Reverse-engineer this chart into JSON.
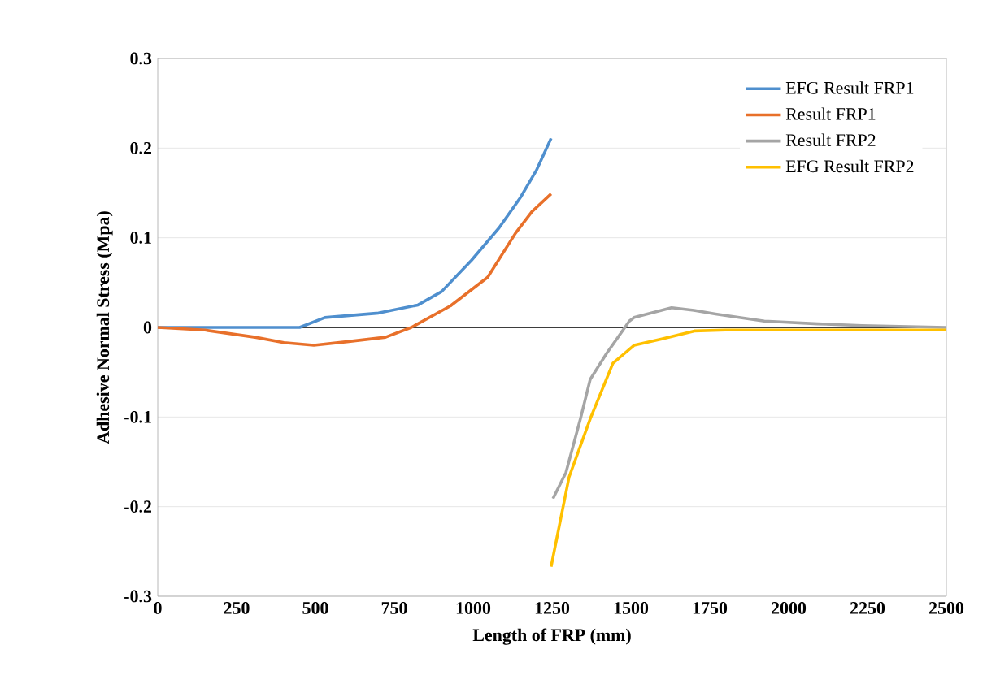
{
  "chart_data": {
    "type": "line",
    "xlabel": "Length of FRP (mm)",
    "ylabel": "Adhesive Normal Stress (Mpa)",
    "xlim": [
      0,
      2500
    ],
    "xticks": [
      0,
      250,
      500,
      750,
      1000,
      1250,
      1500,
      1750,
      2000,
      2250,
      2500
    ],
    "ylim": [
      -0.3,
      0.3
    ],
    "yticks": [
      -0.3,
      -0.2,
      -0.1,
      0,
      0.1,
      0.2,
      0.3
    ],
    "grid": "y",
    "legend": "top right",
    "marker": "none",
    "line_style": "solid",
    "ref_lines": [
      {
        "axis": "y",
        "value": 0,
        "color": "#000000"
      }
    ],
    "series": [
      {
        "name": "EFG Result FRP1",
        "color": "#4f8fce",
        "x": [
          0,
          200,
          450,
          530,
          700,
          825,
          900,
          995,
          1082,
          1150,
          1200,
          1247
        ],
        "values": [
          0,
          0,
          0,
          0.011,
          0.016,
          0.025,
          0.04,
          0.075,
          0.111,
          0.145,
          0.175,
          0.211
        ]
      },
      {
        "name": "Result FRP1",
        "color": "#e8702a",
        "x": [
          0,
          150,
          309,
          400,
          495,
          600,
          722,
          804,
          928,
          1046,
          1134,
          1186,
          1247
        ],
        "values": [
          0,
          -0.003,
          -0.011,
          -0.017,
          -0.02,
          -0.016,
          -0.011,
          0,
          0.024,
          0.056,
          0.105,
          0.129,
          0.149
        ]
      },
      {
        "name": "Result FRP2",
        "color": "#a5a5a5",
        "x": [
          1253,
          1294,
          1340,
          1371,
          1423,
          1495,
          1510,
          1629,
          1700,
          1768,
          1923,
          2093,
          2232,
          2500
        ],
        "values": [
          -0.191,
          -0.162,
          -0.102,
          -0.058,
          -0.029,
          0.007,
          0.011,
          0.022,
          0.019,
          0.015,
          0.007,
          0.004,
          0.002,
          0
        ]
      },
      {
        "name": "EFG Result FRP2",
        "color": "#ffc000",
        "x": [
          1247,
          1304,
          1371,
          1443,
          1510,
          1598,
          1701,
          1800,
          2500
        ],
        "values": [
          -0.267,
          -0.167,
          -0.102,
          -0.04,
          -0.02,
          -0.013,
          -0.004,
          -0.003,
          -0.003
        ]
      }
    ]
  }
}
